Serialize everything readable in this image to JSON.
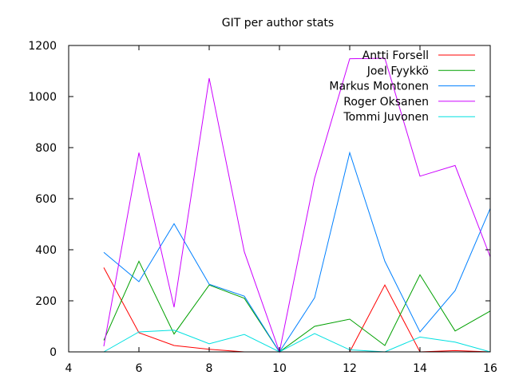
{
  "chart_data": {
    "type": "line",
    "title": "GIT per author stats",
    "xlabel": "",
    "ylabel": "",
    "xlim": [
      4,
      16
    ],
    "ylim": [
      0,
      1200
    ],
    "xticks": [
      4,
      6,
      8,
      10,
      12,
      14,
      16
    ],
    "yticks": [
      0,
      200,
      400,
      600,
      800,
      1000,
      1200
    ],
    "grid": false,
    "legend_position": "top-right",
    "x": [
      5,
      6,
      7,
      8,
      9,
      10,
      11,
      12,
      13,
      14,
      15,
      16
    ],
    "series": [
      {
        "name": "Antti Forsell",
        "color": "#ff0000",
        "values": [
          330,
          75,
          25,
          10,
          0,
          null,
          null,
          0,
          262,
          0,
          5,
          0
        ]
      },
      {
        "name": "Joel Fyykkö",
        "color": "#00a000",
        "values": [
          45,
          355,
          70,
          262,
          210,
          0,
          100,
          128,
          25,
          302,
          82,
          160
        ]
      },
      {
        "name": "Markus Montonen",
        "color": "#0080ff",
        "values": [
          390,
          275,
          502,
          265,
          218,
          0,
          212,
          780,
          355,
          78,
          240,
          562
        ]
      },
      {
        "name": "Roger Oksanen",
        "color": "#cc00ff",
        "values": [
          22,
          780,
          175,
          1072,
          392,
          0,
          680,
          1148,
          1150,
          688,
          730,
          372
        ]
      },
      {
        "name": "Tommi Juvonen",
        "color": "#00e0e0",
        "values": [
          0,
          78,
          85,
          32,
          68,
          0,
          72,
          8,
          0,
          58,
          38,
          0
        ]
      }
    ]
  }
}
